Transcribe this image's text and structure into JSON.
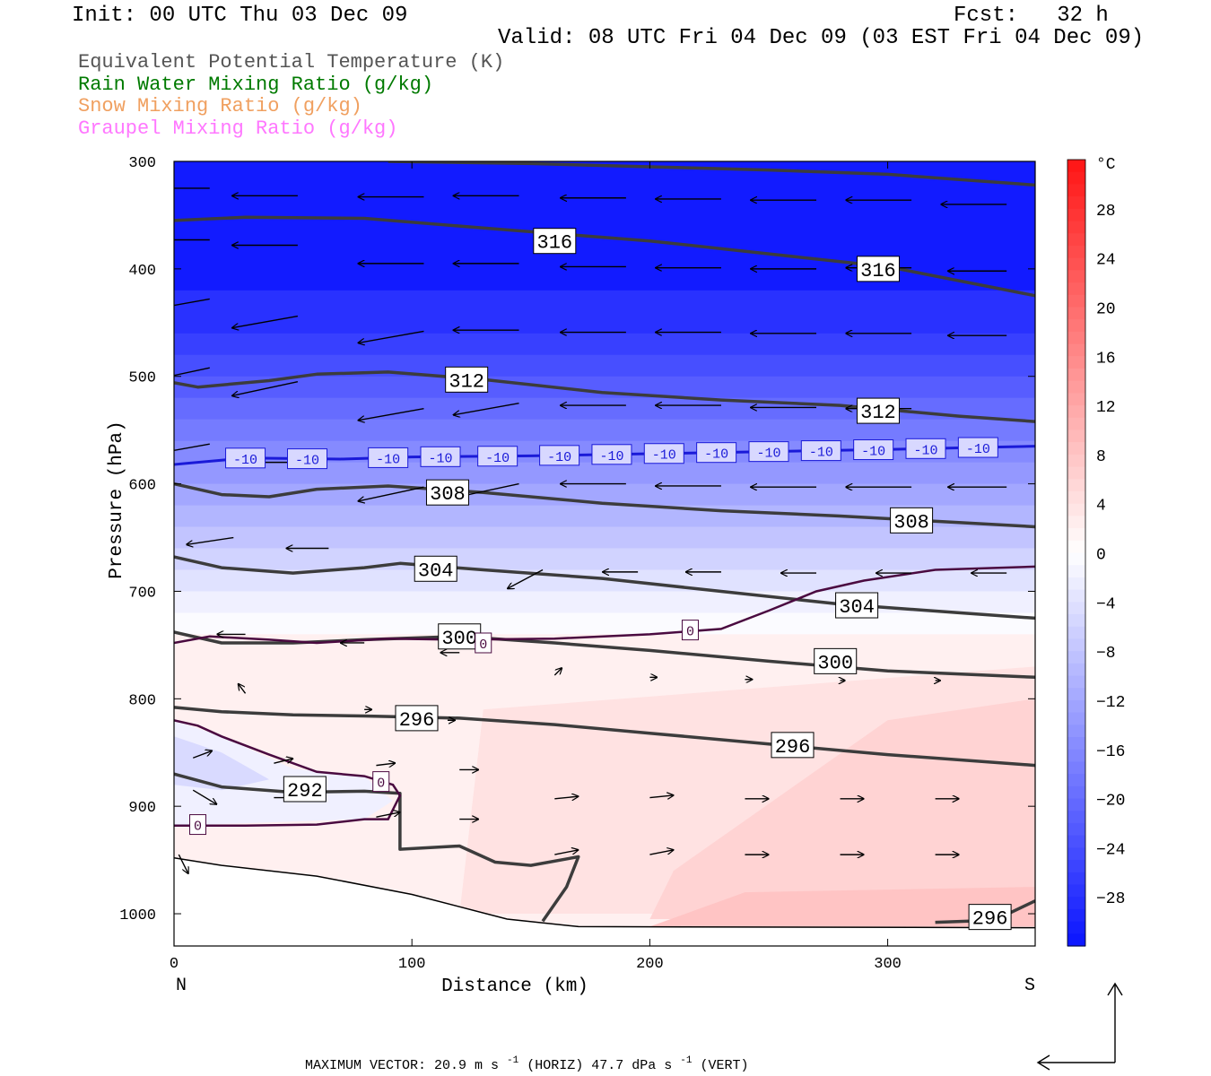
{
  "header": {
    "init": "Init: 00 UTC Thu 03 Dec 09",
    "fcst": "Fcst:   32 h",
    "valid": "Valid: 08 UTC Fri 04 Dec 09 (03 EST Fri 04 Dec 09)"
  },
  "legend": [
    {
      "text": "Equivalent Potential Temperature (K)",
      "color": "#555555"
    },
    {
      "text": "Rain Water Mixing Ratio (g/kg)",
      "color": "#007a00"
    },
    {
      "text": "Snow Mixing Ratio (g/kg)",
      "color": "#f0a060"
    },
    {
      "text": "Graupel Mixing Ratio (g/kg)",
      "color": "#ff77ff"
    }
  ],
  "footer": {
    "max_vector_label": "MAXIMUM VECTOR:",
    "horiz": "20.9 m s",
    "horiz_sup": "-1",
    "horiz_tag": "(HORIZ)",
    "vert": "47.7 dPa s",
    "vert_sup": "-1",
    "vert_tag": "(VERT)"
  },
  "chart_data": {
    "type": "cross-section",
    "xlabel": "Distance (km)",
    "ylabel": "Pressure (hPa)",
    "xlim": [
      0,
      362
    ],
    "ylim": [
      1030,
      300
    ],
    "x_ticks": [
      0,
      100,
      200,
      300
    ],
    "y_ticks": [
      300,
      400,
      500,
      600,
      700,
      800,
      900,
      1000
    ],
    "left_end_label": "N",
    "right_end_label": "S",
    "colorbar": {
      "unit": "°C",
      "ticks": [
        28,
        24,
        20,
        16,
        12,
        8,
        4,
        0,
        -4,
        -8,
        -12,
        -16,
        -20,
        -24,
        -28
      ],
      "range": [
        -32,
        32
      ]
    },
    "theta_e_contours": [
      {
        "label": "316",
        "points": [
          [
            90,
            300
          ],
          [
            150,
            302
          ],
          [
            200,
            305
          ],
          [
            250,
            308
          ],
          [
            300,
            312
          ],
          [
            362,
            322
          ]
        ]
      },
      {
        "label": "316",
        "points": [
          [
            0,
            355
          ],
          [
            30,
            352
          ],
          [
            80,
            353
          ],
          [
            130,
            362
          ],
          [
            200,
            374
          ],
          [
            250,
            386
          ],
          [
            300,
            398
          ],
          [
            362,
            425
          ]
        ]
      },
      {
        "label": "312",
        "points": [
          [
            0,
            506
          ],
          [
            10,
            510
          ],
          [
            40,
            504
          ],
          [
            60,
            498
          ],
          [
            90,
            496
          ],
          [
            130,
            503
          ],
          [
            180,
            515
          ],
          [
            230,
            522
          ],
          [
            280,
            527
          ],
          [
            330,
            537
          ],
          [
            362,
            542
          ]
        ]
      },
      {
        "label": "308",
        "points": [
          [
            0,
            600
          ],
          [
            20,
            610
          ],
          [
            40,
            612
          ],
          [
            60,
            605
          ],
          [
            90,
            602
          ],
          [
            130,
            608
          ],
          [
            180,
            618
          ],
          [
            230,
            625
          ],
          [
            280,
            630
          ],
          [
            330,
            636
          ],
          [
            362,
            640
          ]
        ]
      },
      {
        "label": "304",
        "points": [
          [
            0,
            668
          ],
          [
            20,
            678
          ],
          [
            50,
            683
          ],
          [
            80,
            678
          ],
          [
            95,
            674
          ],
          [
            130,
            680
          ],
          [
            180,
            688
          ],
          [
            230,
            700
          ],
          [
            280,
            712
          ],
          [
            330,
            720
          ],
          [
            362,
            725
          ]
        ]
      },
      {
        "label": "300",
        "points": [
          [
            0,
            738
          ],
          [
            20,
            748
          ],
          [
            50,
            748
          ],
          [
            80,
            745
          ],
          [
            120,
            742
          ],
          [
            160,
            748
          ],
          [
            200,
            755
          ],
          [
            250,
            765
          ],
          [
            300,
            774
          ],
          [
            362,
            780
          ]
        ]
      },
      {
        "label": "296",
        "points": [
          [
            0,
            808
          ],
          [
            20,
            812
          ],
          [
            50,
            815
          ],
          [
            80,
            816
          ],
          [
            120,
            818
          ],
          [
            160,
            824
          ],
          [
            200,
            832
          ],
          [
            250,
            842
          ],
          [
            300,
            852
          ],
          [
            362,
            862
          ]
        ]
      },
      {
        "label": "292",
        "points": [
          [
            0,
            870
          ],
          [
            20,
            882
          ],
          [
            50,
            887
          ],
          [
            80,
            886
          ],
          [
            95,
            888
          ],
          [
            95,
            940
          ],
          [
            120,
            937
          ],
          [
            135,
            952
          ],
          [
            150,
            955
          ],
          [
            170,
            947
          ],
          [
            165,
            975
          ],
          [
            155,
            1007
          ]
        ]
      },
      {
        "label": "296",
        "points": [
          [
            320,
            1008
          ],
          [
            345,
            1006
          ],
          [
            362,
            988
          ]
        ]
      }
    ],
    "isotherm_minus10": {
      "label": "-10",
      "points": [
        [
          0,
          582
        ],
        [
          30,
          576
        ],
        [
          70,
          577
        ],
        [
          100,
          575
        ],
        [
          150,
          574
        ],
        [
          200,
          572
        ],
        [
          250,
          570
        ],
        [
          300,
          568
        ],
        [
          362,
          565
        ]
      ]
    },
    "isotherm_zero": {
      "label": "0",
      "points": [
        [
          0,
          748
        ],
        [
          15,
          742
        ],
        [
          40,
          745
        ],
        [
          60,
          748
        ],
        [
          90,
          744
        ],
        [
          120,
          745
        ],
        [
          160,
          744
        ],
        [
          200,
          740
        ],
        [
          230,
          735
        ],
        [
          250,
          718
        ],
        [
          270,
          700
        ],
        [
          290,
          690
        ],
        [
          320,
          680
        ],
        [
          362,
          677
        ]
      ]
    },
    "isotherm_zero_lower": {
      "label": "0",
      "points": [
        [
          0,
          918
        ],
        [
          30,
          918
        ],
        [
          60,
          917
        ],
        [
          80,
          912
        ],
        [
          90,
          912
        ],
        [
          95,
          890
        ],
        [
          92,
          880
        ],
        [
          80,
          872
        ],
        [
          60,
          868
        ],
        [
          40,
          852
        ],
        [
          20,
          835
        ],
        [
          10,
          825
        ],
        [
          0,
          820
        ]
      ]
    },
    "isotherm_zero_labels": [
      {
        "label": "0",
        "x": 130,
        "p": 748
      },
      {
        "label": "0",
        "x": 217,
        "p": 736
      },
      {
        "label": "0",
        "x": 87,
        "p": 877
      },
      {
        "label": "0",
        "x": 10,
        "p": 917
      }
    ],
    "contour_labels": [
      {
        "label": "316",
        "x": 160,
        "p": 374
      },
      {
        "label": "316",
        "x": 296,
        "p": 400
      },
      {
        "label": "312",
        "x": 123,
        "p": 503
      },
      {
        "label": "312",
        "x": 296,
        "p": 532
      },
      {
        "label": "308",
        "x": 115,
        "p": 608
      },
      {
        "label": "308",
        "x": 310,
        "p": 634
      },
      {
        "label": "304",
        "x": 110,
        "p": 679
      },
      {
        "label": "304",
        "x": 287,
        "p": 713
      },
      {
        "label": "300",
        "x": 120,
        "p": 742
      },
      {
        "label": "300",
        "x": 278,
        "p": 765
      },
      {
        "label": "296",
        "x": 102,
        "p": 818
      },
      {
        "label": "296",
        "x": 260,
        "p": 843
      },
      {
        "label": "292",
        "x": 55,
        "p": 884
      },
      {
        "label": "296",
        "x": 343,
        "p": 1003
      }
    ],
    "minus10_labels": [
      30,
      56,
      90,
      112,
      136,
      162,
      184,
      206,
      228,
      250,
      272,
      294,
      316,
      338
    ],
    "wind_vectors": [
      {
        "x": 15,
        "p": 325,
        "u": -28,
        "w": 0
      },
      {
        "x": 52,
        "p": 332,
        "u": -28,
        "w": 0
      },
      {
        "x": 105,
        "p": 333,
        "u": -28,
        "w": 0
      },
      {
        "x": 145,
        "p": 332,
        "u": -28,
        "w": 0
      },
      {
        "x": 190,
        "p": 334,
        "u": -28,
        "w": 0
      },
      {
        "x": 230,
        "p": 335,
        "u": -28,
        "w": 0
      },
      {
        "x": 270,
        "p": 336,
        "u": -28,
        "w": 0
      },
      {
        "x": 310,
        "p": 336,
        "u": -28,
        "w": 0
      },
      {
        "x": 350,
        "p": 340,
        "u": -28,
        "w": 0
      },
      {
        "x": 15,
        "p": 373,
        "u": -28,
        "w": 0
      },
      {
        "x": 52,
        "p": 378,
        "u": -28,
        "w": 0
      },
      {
        "x": 105,
        "p": 395,
        "u": -28,
        "w": 0
      },
      {
        "x": 145,
        "p": 395,
        "u": -28,
        "w": 0
      },
      {
        "x": 190,
        "p": 398,
        "u": -28,
        "w": 0
      },
      {
        "x": 230,
        "p": 399,
        "u": -28,
        "w": 0
      },
      {
        "x": 270,
        "p": 400,
        "u": -28,
        "w": 0
      },
      {
        "x": 310,
        "p": 399,
        "u": -28,
        "w": 0
      },
      {
        "x": 350,
        "p": 402,
        "u": -25,
        "w": 0
      },
      {
        "x": 15,
        "p": 428,
        "u": -28,
        "w": -5
      },
      {
        "x": 52,
        "p": 444,
        "u": -28,
        "w": -5
      },
      {
        "x": 105,
        "p": 458,
        "u": -28,
        "w": -5
      },
      {
        "x": 145,
        "p": 457,
        "u": -28,
        "w": 0
      },
      {
        "x": 190,
        "p": 459,
        "u": -28,
        "w": 0
      },
      {
        "x": 230,
        "p": 459,
        "u": -28,
        "w": 0
      },
      {
        "x": 270,
        "p": 460,
        "u": -28,
        "w": 0
      },
      {
        "x": 310,
        "p": 460,
        "u": -28,
        "w": 0
      },
      {
        "x": 350,
        "p": 462,
        "u": -25,
        "w": 0
      },
      {
        "x": 15,
        "p": 492,
        "u": -28,
        "w": -6
      },
      {
        "x": 52,
        "p": 505,
        "u": -28,
        "w": -6
      },
      {
        "x": 105,
        "p": 530,
        "u": -28,
        "w": -5
      },
      {
        "x": 145,
        "p": 525,
        "u": -28,
        "w": -5
      },
      {
        "x": 190,
        "p": 527,
        "u": -28,
        "w": 0
      },
      {
        "x": 230,
        "p": 527,
        "u": -28,
        "w": 0
      },
      {
        "x": 270,
        "p": 529,
        "u": -28,
        "w": 0
      },
      {
        "x": 310,
        "p": 530,
        "u": -28,
        "w": 0
      },
      {
        "x": 15,
        "p": 563,
        "u": -28,
        "w": -5
      },
      {
        "x": 52,
        "p": 580,
        "u": -28,
        "w": 0
      },
      {
        "x": 105,
        "p": 603,
        "u": -28,
        "w": -6
      },
      {
        "x": 145,
        "p": 600,
        "u": -28,
        "w": -6
      },
      {
        "x": 190,
        "p": 600,
        "u": -28,
        "w": 0
      },
      {
        "x": 230,
        "p": 602,
        "u": -28,
        "w": 0
      },
      {
        "x": 270,
        "p": 603,
        "u": -28,
        "w": 0
      },
      {
        "x": 310,
        "p": 603,
        "u": -28,
        "w": 0
      },
      {
        "x": 350,
        "p": 603,
        "u": -25,
        "w": 0
      },
      {
        "x": 25,
        "p": 650,
        "u": -20,
        "w": -3
      },
      {
        "x": 65,
        "p": 660,
        "u": -18,
        "w": 0
      },
      {
        "x": 155,
        "p": 680,
        "u": -15,
        "w": -8
      },
      {
        "x": 195,
        "p": 682,
        "u": -15,
        "w": 0
      },
      {
        "x": 230,
        "p": 682,
        "u": -15,
        "w": 0
      },
      {
        "x": 270,
        "p": 683,
        "u": -15,
        "w": 0
      },
      {
        "x": 310,
        "p": 683,
        "u": -15,
        "w": 0
      },
      {
        "x": 350,
        "p": 683,
        "u": -15,
        "w": 0
      },
      {
        "x": 30,
        "p": 740,
        "u": -12,
        "w": 0
      },
      {
        "x": 80,
        "p": 748,
        "u": -10,
        "w": 0
      },
      {
        "x": 120,
        "p": 757,
        "u": -8,
        "w": 0
      },
      {
        "x": 160,
        "p": 778,
        "u": 3,
        "w": 3
      },
      {
        "x": 200,
        "p": 780,
        "u": 3,
        "w": 0
      },
      {
        "x": 240,
        "p": 782,
        "u": 3,
        "w": 0
      },
      {
        "x": 280,
        "p": 783,
        "u": 2,
        "w": 0
      },
      {
        "x": 320,
        "p": 783,
        "u": 2,
        "w": 0
      },
      {
        "x": 30,
        "p": 795,
        "u": -3,
        "w": 4
      },
      {
        "x": 80,
        "p": 810,
        "u": 3,
        "w": 0
      },
      {
        "x": 115,
        "p": 820,
        "u": 3,
        "w": 0
      },
      {
        "x": 8,
        "p": 855,
        "u": 8,
        "w": 3
      },
      {
        "x": 42,
        "p": 860,
        "u": 8,
        "w": 2
      },
      {
        "x": 85,
        "p": 862,
        "u": 8,
        "w": 1
      },
      {
        "x": 120,
        "p": 866,
        "u": 8,
        "w": 0
      },
      {
        "x": 8,
        "p": 885,
        "u": 10,
        "w": -6
      },
      {
        "x": 42,
        "p": 892,
        "u": 10,
        "w": 0
      },
      {
        "x": 85,
        "p": 910,
        "u": 10,
        "w": 2
      },
      {
        "x": 120,
        "p": 912,
        "u": 8,
        "w": 0
      },
      {
        "x": 160,
        "p": 893,
        "u": 10,
        "w": 1
      },
      {
        "x": 200,
        "p": 892,
        "u": 10,
        "w": 1
      },
      {
        "x": 240,
        "p": 893,
        "u": 10,
        "w": 0
      },
      {
        "x": 280,
        "p": 893,
        "u": 10,
        "w": 0
      },
      {
        "x": 320,
        "p": 893,
        "u": 10,
        "w": 0
      },
      {
        "x": 2,
        "p": 945,
        "u": 4,
        "w": -8
      },
      {
        "x": 160,
        "p": 945,
        "u": 10,
        "w": 2
      },
      {
        "x": 200,
        "p": 945,
        "u": 10,
        "w": 2
      },
      {
        "x": 240,
        "p": 945,
        "u": 10,
        "w": 0
      },
      {
        "x": 280,
        "p": 945,
        "u": 10,
        "w": 0
      },
      {
        "x": 320,
        "p": 945,
        "u": 10,
        "w": 0
      }
    ]
  }
}
